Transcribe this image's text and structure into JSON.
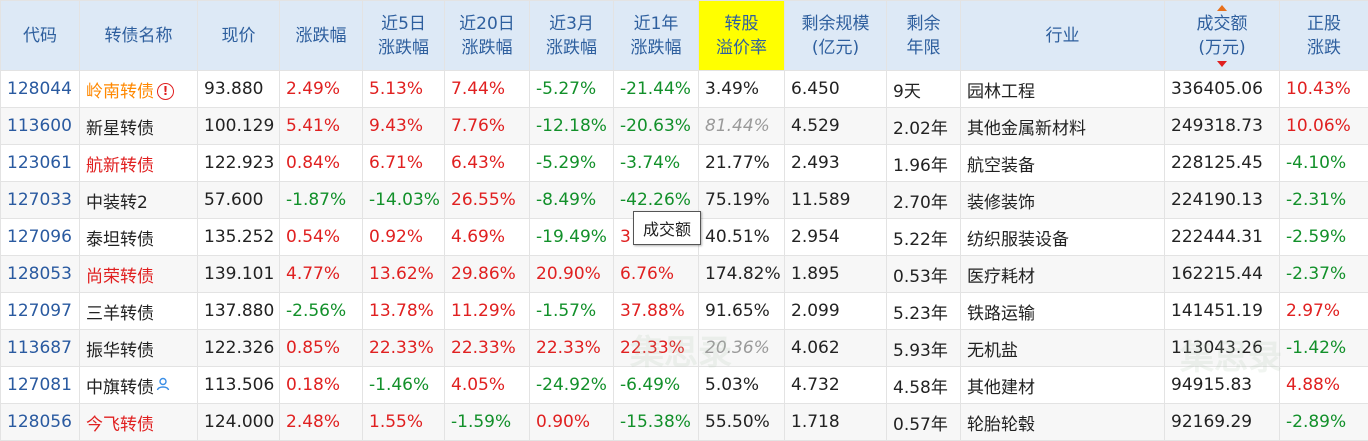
{
  "headers": [
    {
      "line1": "代码",
      "line2": ""
    },
    {
      "line1": "转债名称",
      "line2": ""
    },
    {
      "line1": "现价",
      "line2": ""
    },
    {
      "line1": "涨跌幅",
      "line2": ""
    },
    {
      "line1": "近5日",
      "line2": "涨跌幅"
    },
    {
      "line1": "近20日",
      "line2": "涨跌幅"
    },
    {
      "line1": "近3月",
      "line2": "涨跌幅"
    },
    {
      "line1": "近1年",
      "line2": "涨跌幅"
    },
    {
      "line1": "转股",
      "line2": "溢价率"
    },
    {
      "line1": "剩余规模",
      "line2": "(亿元)"
    },
    {
      "line1": "剩余",
      "line2": "年限"
    },
    {
      "line1": "行业",
      "line2": ""
    },
    {
      "line1": "成交额",
      "line2": "(万元)"
    },
    {
      "line1": "正股",
      "line2": "涨跌"
    }
  ],
  "rows": [
    {
      "code": "128044",
      "name": "岭南转债",
      "price": "93.880",
      "chg": "2.49%",
      "chg5": "5.13%",
      "chg20": "7.44%",
      "chg3m": "-5.27%",
      "chg1y": "-21.44%",
      "premium": "3.49%",
      "scale": "6.450",
      "years": "9天",
      "industry": "园林工程",
      "volume": "336405.06",
      "stock_chg": "10.43%"
    },
    {
      "code": "113600",
      "name": "新星转债",
      "price": "100.129",
      "chg": "5.41%",
      "chg5": "9.43%",
      "chg20": "7.76%",
      "chg3m": "-12.18%",
      "chg1y": "-20.63%",
      "premium": "81.44%",
      "scale": "4.529",
      "years": "2.02年",
      "industry": "其他金属新材料",
      "volume": "249318.73",
      "stock_chg": "10.06%"
    },
    {
      "code": "123061",
      "name": "航新转债",
      "price": "122.923",
      "chg": "0.84%",
      "chg5": "6.71%",
      "chg20": "6.43%",
      "chg3m": "-5.29%",
      "chg1y": "-3.74%",
      "premium": "21.77%",
      "scale": "2.493",
      "years": "1.96年",
      "industry": "航空装备",
      "volume": "228125.45",
      "stock_chg": "-4.10%"
    },
    {
      "code": "127033",
      "name": "中装转2",
      "price": "57.600",
      "chg": "-1.87%",
      "chg5": "-14.03%",
      "chg20": "26.55%",
      "chg3m": "-8.49%",
      "chg1y": "-42.26%",
      "premium": "75.19%",
      "scale": "11.589",
      "years": "2.70年",
      "industry": "装修装饰",
      "volume": "224190.13",
      "stock_chg": "-2.31%"
    },
    {
      "code": "127096",
      "name": "泰坦转债",
      "price": "135.252",
      "chg": "0.54%",
      "chg5": "0.92%",
      "chg20": "4.69%",
      "chg3m": "-19.49%",
      "chg1y": "3!",
      "premium": "40.51%",
      "scale": "2.954",
      "years": "5.22年",
      "industry": "纺织服装设备",
      "volume": "222444.31",
      "stock_chg": "-2.59%"
    },
    {
      "code": "128053",
      "name": "尚荣转债",
      "price": "139.101",
      "chg": "4.77%",
      "chg5": "13.62%",
      "chg20": "29.86%",
      "chg3m": "20.90%",
      "chg1y": "6.76%",
      "premium": "174.82%",
      "scale": "1.895",
      "years": "0.53年",
      "industry": "医疗耗材",
      "volume": "162215.44",
      "stock_chg": "-2.37%"
    },
    {
      "code": "127097",
      "name": "三羊转债",
      "price": "137.880",
      "chg": "-2.56%",
      "chg5": "13.78%",
      "chg20": "11.29%",
      "chg3m": "-1.57%",
      "chg1y": "37.88%",
      "premium": "91.65%",
      "scale": "2.099",
      "years": "5.23年",
      "industry": "铁路运输",
      "volume": "141451.19",
      "stock_chg": "2.97%"
    },
    {
      "code": "113687",
      "name": "振华转债",
      "price": "122.326",
      "chg": "0.85%",
      "chg5": "22.33%",
      "chg20": "22.33%",
      "chg3m": "22.33%",
      "chg1y": "22.33%",
      "premium": "20.36%",
      "scale": "4.062",
      "years": "5.93年",
      "industry": "无机盐",
      "volume": "113043.26",
      "stock_chg": "-1.42%"
    },
    {
      "code": "127081",
      "name": "中旗转债",
      "price": "113.506",
      "chg": "0.18%",
      "chg5": "-1.46%",
      "chg20": "4.05%",
      "chg3m": "-24.92%",
      "chg1y": "-6.49%",
      "premium": "5.03%",
      "scale": "4.732",
      "years": "4.58年",
      "industry": "其他建材",
      "volume": "94915.83",
      "stock_chg": "4.88%"
    },
    {
      "code": "128056",
      "name": "今飞转债",
      "price": "124.000",
      "chg": "2.48%",
      "chg5": "1.55%",
      "chg20": "-1.59%",
      "chg3m": "0.90%",
      "chg1y": "-15.38%",
      "premium": "55.50%",
      "scale": "1.718",
      "years": "0.57年",
      "industry": "轮胎轮毂",
      "volume": "92169.29",
      "stock_chg": "-2.89%"
    }
  ],
  "tooltip": "成交额",
  "watermark": "集思录"
}
